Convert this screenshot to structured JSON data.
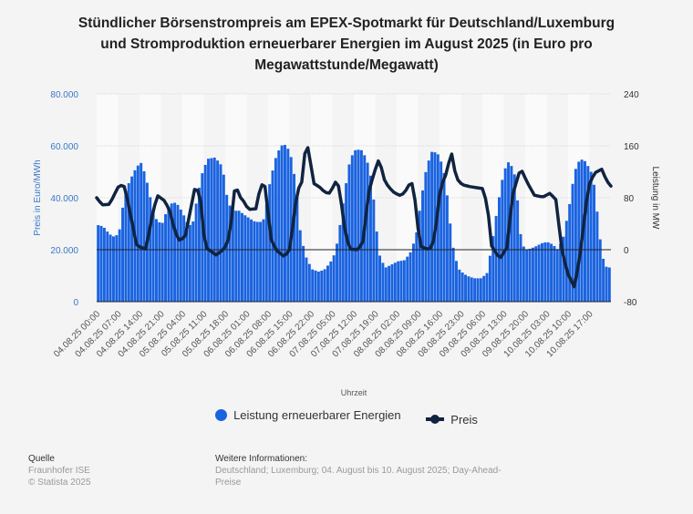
{
  "chart_data": {
    "type": "bar+line",
    "title": "Stündlicher Börsenstrompreis am EPEX-Spotmarkt für Deutschland/Luxemburg und Stromproduktion erneuerbarer Energien im August 2025 (in Euro pro Megawattstunde/Megawatt)",
    "title_lines": [
      "Stündlicher Börsenstrompreis am EPEX-Spotmarkt für Deutschland/Luxemburg",
      "und Stromproduktion erneuerbarer Energien im August 2025 (in Euro pro",
      "Megawattstunde/Megawatt)"
    ],
    "xlabel": "Uhrzeit",
    "ylabel_left": "Preis in Euro/MWh",
    "ylabel_right": "Leistung in MW",
    "ylim_left": [
      0,
      80000
    ],
    "ylim_right": [
      -80,
      240
    ],
    "yticks_left": [
      "0",
      "20.000",
      "40.000",
      "60.000",
      "80.000"
    ],
    "yticks_right": [
      "-80",
      "0",
      "80",
      "160",
      "240"
    ],
    "hours": 168,
    "x_tick_labels": [
      "04.08.25 00:00",
      "04.08.25 07:00",
      "04.08.25 14:00",
      "04.08.25 21:00",
      "05.08.25 04:00",
      "05.08.25 11:00",
      "05.08.25 18:00",
      "06.08.25 01:00",
      "06.08.25 08:00",
      "06.08.25 15:00",
      "06.08.25 22:00",
      "07.08.25 05:00",
      "07.08.25 12:00",
      "07.08.25 19:00",
      "08.08.25 02:00",
      "08.08.25 09:00",
      "08.08.25 16:00",
      "08.08.25 23:00",
      "09.08.25 06:00",
      "09.08.25 13:00",
      "09.08.25 20:00",
      "10.08.25 03:00",
      "10.08.25 10:00",
      "10.08.25 17:00"
    ],
    "x_tick_step_hours": 7,
    "grid": true,
    "legend_position": "bottom",
    "series": [
      {
        "name": "Leistung erneuerbarer Energien",
        "type": "bar",
        "axis": "left",
        "color": "#1a63e0",
        "keypoints_hour_value": [
          [
            0,
            29600
          ],
          [
            2.1,
            29000
          ],
          [
            4.2,
            26000
          ],
          [
            6,
            24800
          ],
          [
            7.4,
            27000
          ],
          [
            9.2,
            42000
          ],
          [
            11,
            47000
          ],
          [
            13.1,
            52000
          ],
          [
            14.6,
            53500
          ],
          [
            16.1,
            48000
          ],
          [
            17.9,
            38000
          ],
          [
            19.7,
            31000
          ],
          [
            21.4,
            30000
          ],
          [
            23.2,
            36000
          ],
          [
            25,
            38500
          ],
          [
            26.8,
            37000
          ],
          [
            28.6,
            33000
          ],
          [
            30.1,
            29000
          ],
          [
            31.6,
            31000
          ],
          [
            32.8,
            40000
          ],
          [
            34.6,
            50000
          ],
          [
            36.3,
            55000
          ],
          [
            38.7,
            55500
          ],
          [
            41.1,
            52000
          ],
          [
            42.9,
            38000
          ],
          [
            44.7,
            35000
          ],
          [
            46.5,
            35000
          ],
          [
            48.8,
            33000
          ],
          [
            51.3,
            31000
          ],
          [
            53.3,
            30500
          ],
          [
            54.8,
            32000
          ],
          [
            56.6,
            46000
          ],
          [
            58.4,
            55000
          ],
          [
            60.1,
            60000
          ],
          [
            61.4,
            60500
          ],
          [
            63.1,
            58000
          ],
          [
            64.3,
            51000
          ],
          [
            65.5,
            40000
          ],
          [
            66.7,
            25000
          ],
          [
            68.5,
            17000
          ],
          [
            70.3,
            12500
          ],
          [
            72.7,
            11500
          ],
          [
            74.5,
            12500
          ],
          [
            76.3,
            15000
          ],
          [
            78,
            19000
          ],
          [
            79.2,
            27000
          ],
          [
            81,
            42000
          ],
          [
            82.8,
            55000
          ],
          [
            84.6,
            58500
          ],
          [
            86.4,
            58500
          ],
          [
            88.2,
            55000
          ],
          [
            90,
            46000
          ],
          [
            91.2,
            30000
          ],
          [
            92.4,
            18000
          ],
          [
            94.2,
            13000
          ],
          [
            95.9,
            14000
          ],
          [
            98.3,
            15500
          ],
          [
            100.7,
            16000
          ],
          [
            102.5,
            19000
          ],
          [
            104.3,
            25000
          ],
          [
            106.1,
            40000
          ],
          [
            107.8,
            52000
          ],
          [
            109.6,
            58000
          ],
          [
            111.4,
            57000
          ],
          [
            113.2,
            52000
          ],
          [
            114.4,
            42000
          ],
          [
            115.6,
            29000
          ],
          [
            116.8,
            18000
          ],
          [
            118.6,
            12000
          ],
          [
            120.9,
            10000
          ],
          [
            123.3,
            9000
          ],
          [
            125.7,
            9000
          ],
          [
            127.5,
            11000
          ],
          [
            128.7,
            19000
          ],
          [
            130.5,
            33000
          ],
          [
            132.3,
            46000
          ],
          [
            134.1,
            54000
          ],
          [
            135.2,
            53000
          ],
          [
            136.4,
            50000
          ],
          [
            137.6,
            38000
          ],
          [
            138.8,
            22000
          ],
          [
            140.6,
            20000
          ],
          [
            143,
            21000
          ],
          [
            145.4,
            22500
          ],
          [
            147.2,
            23000
          ],
          [
            149,
            22000
          ],
          [
            150.7,
            20000
          ],
          [
            152.5,
            25000
          ],
          [
            154.3,
            36000
          ],
          [
            156.1,
            50000
          ],
          [
            157.9,
            55000
          ],
          [
            159.7,
            54000
          ],
          [
            161.5,
            50000
          ],
          [
            162.7,
            44000
          ],
          [
            163.9,
            30000
          ],
          [
            165.1,
            18000
          ],
          [
            166.3,
            13500
          ],
          [
            168,
            13000
          ]
        ]
      },
      {
        "name": "Preis",
        "type": "line",
        "axis": "right",
        "color": "#102440",
        "keypoints_hour_value": [
          [
            0,
            80
          ],
          [
            1.8,
            69
          ],
          [
            4.2,
            70
          ],
          [
            7.4,
            100
          ],
          [
            9.2,
            97
          ],
          [
            11.9,
            34
          ],
          [
            13.1,
            6
          ],
          [
            16.1,
            1
          ],
          [
            18.5,
            62
          ],
          [
            20,
            83
          ],
          [
            22,
            76
          ],
          [
            23.8,
            62
          ],
          [
            25.6,
            27
          ],
          [
            27.1,
            14
          ],
          [
            28.9,
            20
          ],
          [
            30.7,
            62
          ],
          [
            31.9,
            93
          ],
          [
            33.7,
            90
          ],
          [
            34.9,
            27
          ],
          [
            35.7,
            3
          ],
          [
            39,
            -8
          ],
          [
            41.7,
            1
          ],
          [
            43.5,
            22
          ],
          [
            45.3,
            104
          ],
          [
            46.5,
            83
          ],
          [
            48.3,
            73
          ],
          [
            49.5,
            62
          ],
          [
            52.1,
            63
          ],
          [
            53.6,
            101
          ],
          [
            55.1,
            97
          ],
          [
            56.9,
            17
          ],
          [
            58.7,
            -1
          ],
          [
            61.4,
            -11
          ],
          [
            63.1,
            1
          ],
          [
            65.5,
            90
          ],
          [
            67,
            104
          ],
          [
            68.5,
            170
          ],
          [
            69.7,
            139
          ],
          [
            70.9,
            102
          ],
          [
            72.7,
            97
          ],
          [
            74.7,
            88
          ],
          [
            76.2,
            87
          ],
          [
            78,
            104
          ],
          [
            79.2,
            97
          ],
          [
            81,
            34
          ],
          [
            82.5,
            1
          ],
          [
            85.5,
            0
          ],
          [
            87,
            13
          ],
          [
            88.8,
            87
          ],
          [
            90.6,
            118
          ],
          [
            92.4,
            142
          ],
          [
            93.6,
            111
          ],
          [
            95.3,
            97
          ],
          [
            97.4,
            87
          ],
          [
            99.5,
            83
          ],
          [
            101.3,
            93
          ],
          [
            102.8,
            107
          ],
          [
            104.3,
            69
          ],
          [
            105.5,
            6
          ],
          [
            107.9,
            1
          ],
          [
            109.6,
            3
          ],
          [
            110.8,
            34
          ],
          [
            112.3,
            97
          ],
          [
            113.8,
            111
          ],
          [
            115.9,
            150
          ],
          [
            117.4,
            111
          ],
          [
            119.4,
            100
          ],
          [
            122.1,
            97
          ],
          [
            126.3,
            94
          ],
          [
            127.8,
            62
          ],
          [
            129,
            6
          ],
          [
            131.7,
            -14
          ],
          [
            134,
            3
          ],
          [
            135.8,
            83
          ],
          [
            138.5,
            126
          ],
          [
            140.6,
            104
          ],
          [
            143,
            84
          ],
          [
            145.7,
            81
          ],
          [
            148.1,
            87
          ],
          [
            150.2,
            76
          ],
          [
            151.7,
            6
          ],
          [
            153.8,
            -36
          ],
          [
            156.1,
            -58
          ],
          [
            157.9,
            -8
          ],
          [
            160.6,
            97
          ],
          [
            162.6,
            118
          ],
          [
            165,
            124
          ],
          [
            166.5,
            107
          ],
          [
            168,
            98
          ]
        ]
      }
    ]
  },
  "footer": {
    "source_heading": "Quelle",
    "source_lines": [
      "Fraunhofer ISE",
      "© Statista 2025"
    ],
    "info_heading": "Weitere Informationen:",
    "info_lines": [
      "Deutschland; Luxemburg; 04. August bis 10. August 2025; Day-Ahead-",
      "Preise"
    ]
  },
  "colors": {
    "bar": "#1a63e0",
    "line": "#102440",
    "axis_left_text": "#3a78c8"
  }
}
